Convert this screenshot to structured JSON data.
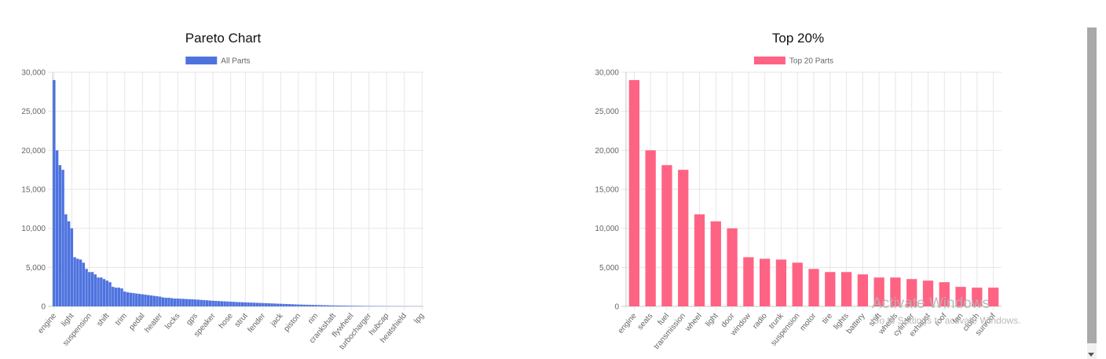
{
  "watermark": {
    "line1": "Activate Windows",
    "line2": "Go to Settings to activate Windows."
  },
  "chart_data": [
    {
      "type": "bar",
      "title": "Pareto Chart",
      "legend": {
        "position": "top-center"
      },
      "grid": true,
      "ylim": [
        0,
        30000
      ],
      "yticks": [
        0,
        5000,
        10000,
        15000,
        20000,
        25000,
        30000
      ],
      "xtick_labels": [
        "engine",
        "light",
        "suspension",
        "shift",
        "trim",
        "pedal",
        "heater",
        "locks",
        "gps",
        "speaker",
        "hose",
        "strut",
        "fender",
        "jack",
        "piston",
        "rim",
        "crankshaft",
        "flywheel",
        "turbocharger",
        "hubcap",
        "heatshield",
        "lpg"
      ],
      "series": [
        {
          "name": "All Parts",
          "color": "#4e73df",
          "values": [
            29000,
            20000,
            18100,
            17500,
            11800,
            10900,
            10000,
            6300,
            6100,
            6000,
            5600,
            4800,
            4400,
            4400,
            4100,
            3700,
            3700,
            3500,
            3300,
            3100,
            2500,
            2400,
            2400,
            2300,
            1900,
            1800,
            1750,
            1700,
            1650,
            1600,
            1550,
            1500,
            1450,
            1400,
            1350,
            1300,
            1250,
            1150,
            1100,
            1100,
            1050,
            1000,
            1000,
            980,
            960,
            940,
            920,
            900,
            880,
            860,
            830,
            800,
            780,
            750,
            720,
            700,
            680,
            660,
            640,
            620,
            600,
            580,
            560,
            545,
            530,
            515,
            500,
            485,
            470,
            455,
            440,
            425,
            410,
            395,
            380,
            365,
            350,
            335,
            320,
            305,
            290,
            275,
            260,
            245,
            230,
            220,
            210,
            200,
            190,
            180,
            170,
            160,
            150,
            140,
            130,
            120,
            112,
            105,
            98,
            92,
            86,
            80,
            75,
            70,
            65,
            60,
            56,
            52,
            48,
            45,
            42,
            39,
            36,
            34,
            32,
            30,
            28,
            26,
            24,
            22,
            20,
            19,
            18,
            17,
            16,
            15
          ]
        }
      ]
    },
    {
      "type": "bar",
      "title": "Top 20%",
      "legend": {
        "position": "top-center"
      },
      "grid": true,
      "ylim": [
        0,
        30000
      ],
      "yticks": [
        0,
        5000,
        10000,
        15000,
        20000,
        25000,
        30000
      ],
      "categories": [
        "engine",
        "seats",
        "fuel",
        "transmission",
        "wheel",
        "light",
        "door",
        "window",
        "radio",
        "trunk",
        "suspension",
        "motor",
        "tire",
        "lights",
        "battery",
        "shift",
        "wheels",
        "cylinder",
        "exhaust",
        "roof",
        "fan",
        "clutch",
        "sunroof"
      ],
      "series": [
        {
          "name": "Top 20 Parts",
          "color": "#ff6384",
          "values": [
            29000,
            20000,
            18100,
            17500,
            11800,
            10900,
            10000,
            6300,
            6100,
            6000,
            5600,
            4800,
            4400,
            4400,
            4100,
            3700,
            3700,
            3500,
            3300,
            3100,
            2500,
            2400,
            2400
          ]
        }
      ]
    }
  ]
}
